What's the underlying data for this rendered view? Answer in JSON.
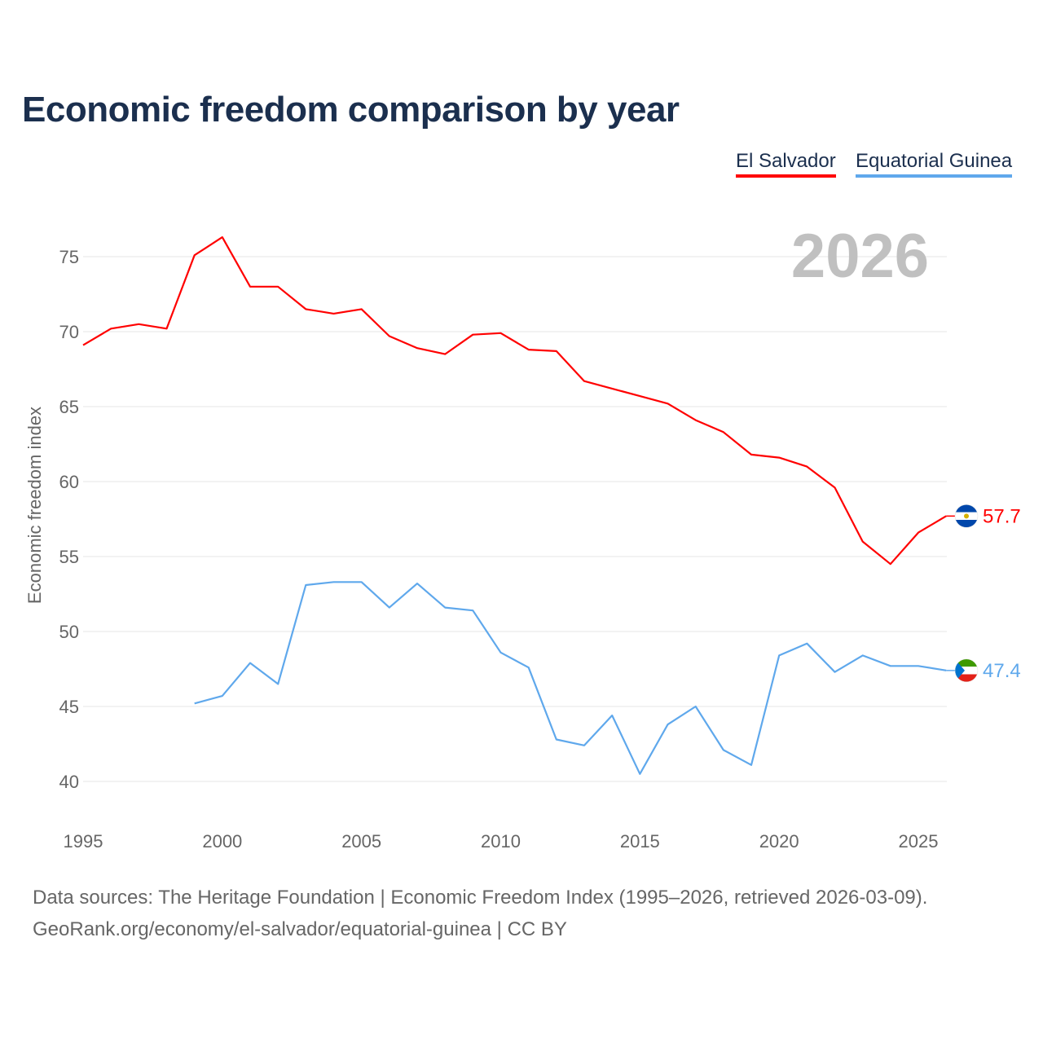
{
  "chart_data": {
    "type": "line",
    "title": "Economic freedom comparison by year",
    "xlabel": "",
    "ylabel": "Economic freedom index",
    "xlim": [
      1995,
      2026
    ],
    "ylim": [
      40,
      75
    ],
    "xticks": [
      1995,
      2000,
      2005,
      2010,
      2015,
      2020,
      2025
    ],
    "yticks": [
      40,
      45,
      50,
      55,
      60,
      65,
      70,
      75
    ],
    "grid": true,
    "legend_position": "top-right",
    "year_label": "2026",
    "series": [
      {
        "name": "El Salvador",
        "color": "#ff0000",
        "end_label": "57.7",
        "x": [
          1995,
          1996,
          1997,
          1998,
          1999,
          2000,
          2001,
          2002,
          2003,
          2004,
          2005,
          2006,
          2007,
          2008,
          2009,
          2010,
          2011,
          2012,
          2013,
          2014,
          2015,
          2016,
          2017,
          2018,
          2019,
          2020,
          2021,
          2022,
          2023,
          2024,
          2025,
          2026
        ],
        "values": [
          69.1,
          70.2,
          70.5,
          70.2,
          75.1,
          76.3,
          73.0,
          73.0,
          71.5,
          71.2,
          71.5,
          69.7,
          68.9,
          68.5,
          69.8,
          69.9,
          68.8,
          68.7,
          66.7,
          66.2,
          65.7,
          65.2,
          64.1,
          63.3,
          61.8,
          61.6,
          61.0,
          59.6,
          56.0,
          54.5,
          56.6,
          57.7
        ]
      },
      {
        "name": "Equatorial Guinea",
        "color": "#5fa8ec",
        "end_label": "47.4",
        "x": [
          1999,
          2000,
          2001,
          2002,
          2003,
          2004,
          2005,
          2006,
          2007,
          2008,
          2009,
          2010,
          2011,
          2012,
          2013,
          2014,
          2015,
          2016,
          2017,
          2018,
          2019,
          2020,
          2021,
          2022,
          2023,
          2024,
          2025,
          2026
        ],
        "values": [
          45.2,
          45.7,
          47.9,
          46.5,
          53.1,
          53.3,
          53.3,
          51.6,
          53.2,
          51.6,
          51.4,
          48.6,
          47.6,
          42.8,
          42.4,
          44.4,
          40.5,
          43.8,
          45.0,
          42.1,
          41.1,
          48.4,
          49.2,
          47.3,
          48.4,
          47.7,
          47.7,
          47.4
        ]
      }
    ]
  },
  "footer": {
    "line1": "Data sources: The Heritage Foundation | Economic Freedom Index (1995–2026, retrieved 2026-03-09).",
    "line2": "GeoRank.org/economy/el-salvador/equatorial-guinea | CC BY"
  }
}
